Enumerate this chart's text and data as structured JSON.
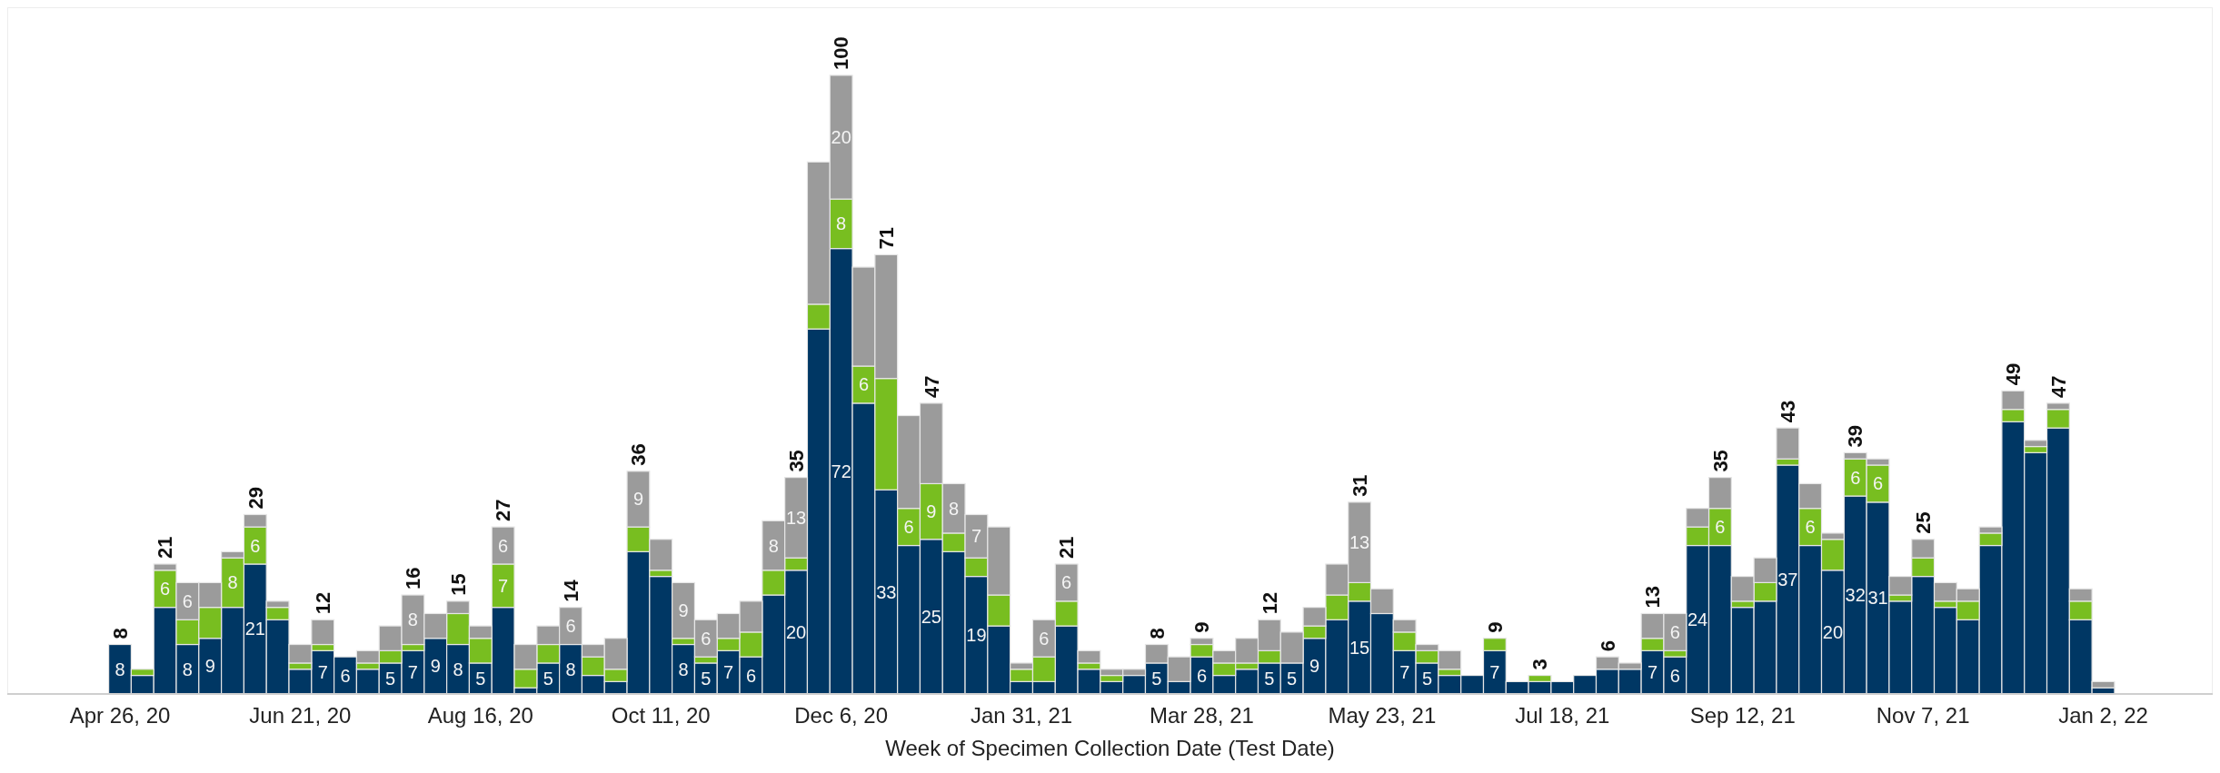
{
  "chart_data": {
    "type": "bar",
    "stacked": true,
    "xlabel": "Week of Specimen Collection Date (Test Date)",
    "tick_labels": "x",
    "x": [
      "2020-04-26",
      "2020-05-03",
      "2020-05-10",
      "2020-05-17",
      "2020-05-24",
      "2020-05-31",
      "2020-06-07",
      "2020-06-14",
      "2020-06-21",
      "2020-06-28",
      "2020-07-05",
      "2020-07-12",
      "2020-07-19",
      "2020-07-26",
      "2020-08-02",
      "2020-08-09",
      "2020-08-16",
      "2020-08-23",
      "2020-08-30",
      "2020-09-06",
      "2020-09-13",
      "2020-09-20",
      "2020-09-27",
      "2020-10-04",
      "2020-10-11",
      "2020-10-18",
      "2020-10-25",
      "2020-11-01",
      "2020-11-08",
      "2020-11-15",
      "2020-11-22",
      "2020-11-29",
      "2020-12-06",
      "2020-12-13",
      "2020-12-20",
      "2020-12-27",
      "2021-01-03",
      "2021-01-10",
      "2021-01-17",
      "2021-01-24",
      "2021-01-31",
      "2021-02-07",
      "2021-02-14",
      "2021-02-21",
      "2021-02-28",
      "2021-03-07",
      "2021-03-14",
      "2021-03-21",
      "2021-03-28",
      "2021-04-04",
      "2021-04-11",
      "2021-04-18",
      "2021-04-25",
      "2021-05-02",
      "2021-05-09",
      "2021-05-16",
      "2021-05-23",
      "2021-05-30",
      "2021-06-06",
      "2021-06-13",
      "2021-06-20",
      "2021-06-27",
      "2021-07-04",
      "2021-07-11",
      "2021-07-18",
      "2021-07-25",
      "2021-08-01",
      "2021-08-08",
      "2021-08-15",
      "2021-08-22",
      "2021-08-29",
      "2021-09-05",
      "2021-09-12",
      "2021-09-19",
      "2021-09-26",
      "2021-10-03",
      "2021-10-10",
      "2021-10-17",
      "2021-10-24",
      "2021-10-31",
      "2021-11-07",
      "2021-11-14",
      "2021-11-21",
      "2021-11-28",
      "2021-12-05",
      "2021-12-12",
      "2021-12-19",
      "2021-12-26",
      "2022-01-02"
    ],
    "xlim": [
      "2020-03-22",
      "2022-02-05"
    ],
    "xticks": [
      {
        "value": "2020-04-26",
        "label": "Apr 26, 20"
      },
      {
        "value": "2020-06-21",
        "label": "Jun 21, 20"
      },
      {
        "value": "2020-08-16",
        "label": "Aug 16, 20"
      },
      {
        "value": "2020-10-11",
        "label": "Oct 11, 20"
      },
      {
        "value": "2020-12-06",
        "label": "Dec 6, 20"
      },
      {
        "value": "2021-01-31",
        "label": "Jan 31, 21"
      },
      {
        "value": "2021-03-28",
        "label": "Mar 28, 21"
      },
      {
        "value": "2021-05-23",
        "label": "May 23, 21"
      },
      {
        "value": "2021-07-18",
        "label": "Jul 18, 21"
      },
      {
        "value": "2021-09-12",
        "label": "Sep 12, 21"
      },
      {
        "value": "2021-11-07",
        "label": "Nov 7, 21"
      },
      {
        "value": "2022-01-02",
        "label": "Jan 2, 22"
      }
    ],
    "ylim": [
      0,
      111
    ],
    "series": [
      {
        "color": "#003764",
        "values": [
          8,
          3,
          14,
          8,
          9,
          14,
          21,
          12,
          4,
          7,
          6,
          4,
          5,
          7,
          9,
          8,
          5,
          14,
          1,
          5,
          8,
          3,
          2,
          23,
          19,
          8,
          5,
          7,
          6,
          16,
          20,
          59,
          72,
          47,
          33,
          24,
          25,
          23,
          19,
          11,
          2,
          2,
          11,
          4,
          2,
          3,
          5,
          2,
          6,
          3,
          4,
          5,
          5,
          9,
          12,
          15,
          13,
          7,
          5,
          3,
          3,
          7,
          2,
          2,
          2,
          3,
          4,
          4,
          7,
          6,
          24,
          24,
          14,
          15,
          37,
          24,
          20,
          32,
          31,
          15,
          19,
          14,
          12,
          24,
          44,
          39,
          43,
          12,
          1
        ],
        "value_labels": [
          "8",
          null,
          null,
          "8",
          "9",
          null,
          "21",
          null,
          null,
          "7",
          "6",
          null,
          "5",
          "7",
          "9",
          "8",
          "5",
          null,
          null,
          "5",
          "8",
          null,
          null,
          null,
          null,
          "8",
          "5",
          "7",
          "6",
          null,
          "20",
          null,
          "72",
          null,
          "33",
          null,
          "25",
          null,
          "19",
          null,
          null,
          null,
          null,
          null,
          null,
          null,
          "5",
          null,
          "6",
          null,
          null,
          "5",
          "5",
          "9",
          null,
          "15",
          null,
          "7",
          "5",
          null,
          null,
          "7",
          null,
          null,
          null,
          null,
          null,
          null,
          "7",
          "6",
          "24",
          null,
          null,
          null,
          "37",
          null,
          "20",
          "32",
          "31",
          null,
          null,
          null,
          null,
          null,
          null,
          null,
          null,
          null,
          null
        ]
      },
      {
        "color": "#78be20",
        "values": [
          0,
          1,
          6,
          4,
          5,
          8,
          6,
          2,
          1,
          1,
          0,
          1,
          2,
          1,
          0,
          5,
          4,
          7,
          3,
          3,
          0,
          3,
          2,
          4,
          1,
          1,
          1,
          2,
          4,
          4,
          2,
          4,
          8,
          6,
          18,
          6,
          9,
          3,
          3,
          5,
          2,
          4,
          4,
          1,
          1,
          0,
          0,
          0,
          2,
          2,
          1,
          2,
          0,
          2,
          4,
          3,
          0,
          3,
          2,
          1,
          0,
          2,
          0,
          1,
          0,
          0,
          0,
          0,
          2,
          1,
          3,
          6,
          1,
          3,
          1,
          6,
          5,
          6,
          6,
          1,
          3,
          1,
          3,
          2,
          2,
          1,
          3,
          3,
          0
        ],
        "value_labels": [
          null,
          null,
          "6",
          null,
          null,
          "8",
          "6",
          null,
          null,
          null,
          null,
          null,
          null,
          null,
          null,
          null,
          null,
          "7",
          null,
          null,
          null,
          null,
          null,
          null,
          null,
          null,
          null,
          null,
          null,
          null,
          null,
          null,
          "8",
          "6",
          null,
          "6",
          "9",
          null,
          null,
          null,
          null,
          null,
          null,
          null,
          null,
          null,
          null,
          null,
          null,
          null,
          null,
          null,
          null,
          null,
          null,
          null,
          null,
          null,
          null,
          null,
          null,
          null,
          null,
          null,
          null,
          null,
          null,
          null,
          null,
          null,
          null,
          "6",
          null,
          null,
          null,
          "6",
          null,
          "6",
          "6",
          null,
          null,
          null,
          null,
          null,
          null,
          null,
          null,
          null,
          null
        ]
      },
      {
        "color": "#9b9b9b",
        "values": [
          0,
          0,
          1,
          6,
          4,
          1,
          2,
          1,
          3,
          4,
          0,
          2,
          4,
          8,
          4,
          2,
          2,
          6,
          4,
          3,
          6,
          2,
          5,
          9,
          5,
          9,
          6,
          4,
          5,
          8,
          13,
          23,
          20,
          16,
          20,
          15,
          13,
          8,
          7,
          11,
          1,
          6,
          6,
          2,
          1,
          1,
          3,
          4,
          1,
          2,
          4,
          5,
          5,
          3,
          5,
          13,
          4,
          2,
          1,
          3,
          0,
          0,
          0,
          0,
          0,
          0,
          2,
          1,
          4,
          6,
          3,
          5,
          4,
          4,
          5,
          4,
          1,
          1,
          1,
          3,
          3,
          3,
          2,
          1,
          3,
          1,
          1,
          2,
          1
        ],
        "value_labels": [
          null,
          null,
          null,
          "6",
          null,
          null,
          null,
          null,
          null,
          null,
          null,
          null,
          null,
          "8",
          null,
          null,
          null,
          "6",
          null,
          null,
          "6",
          null,
          null,
          "9",
          null,
          "9",
          "6",
          null,
          null,
          "8",
          "13",
          null,
          "20",
          null,
          null,
          null,
          null,
          "8",
          "7",
          null,
          null,
          "6",
          "6",
          null,
          null,
          null,
          null,
          null,
          null,
          null,
          null,
          null,
          null,
          null,
          null,
          "13",
          null,
          null,
          null,
          null,
          null,
          null,
          null,
          null,
          null,
          null,
          null,
          null,
          null,
          "6",
          null,
          null,
          null,
          null,
          null,
          null,
          null,
          null,
          null,
          null,
          null,
          null,
          null,
          null,
          null,
          null,
          null,
          null,
          null
        ]
      }
    ],
    "totals": [
      "8",
      null,
      "21",
      null,
      null,
      null,
      "29",
      null,
      null,
      "12",
      null,
      null,
      null,
      "16",
      null,
      "15",
      null,
      "27",
      null,
      null,
      "14",
      null,
      null,
      "36",
      null,
      null,
      null,
      null,
      null,
      null,
      "35",
      null,
      "100",
      null,
      "71",
      null,
      "47",
      null,
      null,
      null,
      null,
      null,
      "21",
      null,
      null,
      null,
      "8",
      null,
      "9",
      null,
      null,
      "12",
      null,
      null,
      null,
      "31",
      null,
      null,
      null,
      null,
      null,
      "9",
      null,
      "3",
      null,
      null,
      "6",
      null,
      "13",
      null,
      null,
      "35",
      null,
      null,
      "43",
      null,
      null,
      "39",
      null,
      null,
      "25",
      null,
      null,
      null,
      "49",
      null,
      "47",
      null,
      null
    ]
  }
}
